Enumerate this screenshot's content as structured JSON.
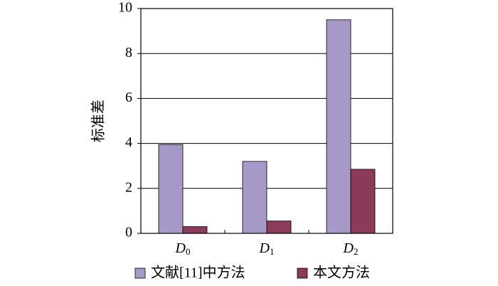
{
  "chart_data": {
    "type": "bar",
    "y_label": "标准差",
    "categories": [
      "D0",
      "D1",
      "D2"
    ],
    "series": [
      {
        "name": "文献[11]中方法",
        "color": "#a699c8",
        "values": [
          3.95,
          3.2,
          9.5
        ]
      },
      {
        "name": "本文方法",
        "color": "#8b3a5a",
        "values": [
          0.3,
          0.55,
          2.85
        ]
      }
    ],
    "ylim": [
      0,
      10
    ],
    "yticks": [
      0,
      2,
      4,
      6,
      8,
      10
    ],
    "grid": true
  }
}
